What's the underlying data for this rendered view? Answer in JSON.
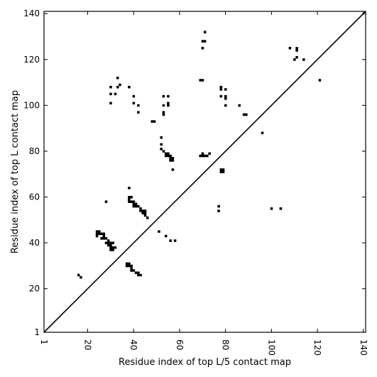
{
  "chart_data": {
    "type": "scatter",
    "title": "",
    "xlabel": "Residue index of top L/5 contact map",
    "ylabel": "Residue index of top L contact map",
    "xlim": [
      1,
      141
    ],
    "ylim": [
      1,
      141
    ],
    "xticks": [
      1,
      20,
      40,
      60,
      80,
      100,
      120,
      140
    ],
    "yticks": [
      1,
      20,
      40,
      60,
      80,
      100,
      120,
      140
    ],
    "x_tick_labels": [
      "1",
      "20",
      "40",
      "60",
      "80",
      "100",
      "120",
      "140"
    ],
    "y_tick_labels": [
      "1",
      "20",
      "40",
      "60",
      "80",
      "100",
      "120",
      "140"
    ],
    "x_tick_rotation": "vertical",
    "grid": false,
    "legend": "none",
    "diagonal": true,
    "marker": "square",
    "marker_color": "#000000",
    "series": [
      {
        "points": [
          [
            71,
            132
          ],
          [
            70,
            128
          ],
          [
            71,
            128
          ],
          [
            70,
            125
          ],
          [
            69,
            111
          ],
          [
            70,
            111
          ],
          [
            108,
            125
          ],
          [
            111,
            125
          ],
          [
            111,
            124
          ],
          [
            110,
            120
          ],
          [
            111,
            121
          ],
          [
            114,
            120
          ],
          [
            121,
            111
          ],
          [
            33,
            112
          ],
          [
            30,
            108
          ],
          [
            33,
            108
          ],
          [
            34,
            109
          ],
          [
            38,
            108
          ],
          [
            30,
            105
          ],
          [
            32,
            105
          ],
          [
            30,
            101
          ],
          [
            40,
            104
          ],
          [
            40,
            101
          ],
          [
            42,
            100
          ],
          [
            42,
            97
          ],
          [
            53,
            104
          ],
          [
            55,
            104
          ],
          [
            53,
            100
          ],
          [
            55,
            101
          ],
          [
            55,
            100
          ],
          [
            53,
            97
          ],
          [
            53,
            96
          ],
          [
            78,
            108
          ],
          [
            78,
            107
          ],
          [
            80,
            107
          ],
          [
            78,
            104
          ],
          [
            80,
            104
          ],
          [
            80,
            103
          ],
          [
            80,
            100
          ],
          [
            86,
            100
          ],
          [
            88,
            96
          ],
          [
            89,
            96
          ],
          [
            96,
            88
          ],
          [
            48,
            93
          ],
          [
            49,
            93
          ],
          [
            52,
            86
          ],
          [
            52,
            83
          ],
          [
            52,
            81
          ],
          [
            53,
            80
          ],
          [
            54,
            79
          ],
          [
            55,
            79
          ],
          [
            54,
            78
          ],
          [
            55,
            78
          ],
          [
            56,
            78
          ],
          [
            56,
            77
          ],
          [
            57,
            77
          ],
          [
            56,
            76
          ],
          [
            57,
            76
          ],
          [
            57,
            72
          ],
          [
            69,
            78
          ],
          [
            70,
            79
          ],
          [
            70,
            78
          ],
          [
            71,
            78
          ],
          [
            72,
            78
          ],
          [
            73,
            79
          ],
          [
            78,
            72
          ],
          [
            79,
            72
          ],
          [
            78,
            71
          ],
          [
            79,
            71
          ],
          [
            38,
            64
          ],
          [
            38,
            60
          ],
          [
            39,
            60
          ],
          [
            38,
            59
          ],
          [
            38,
            58
          ],
          [
            39,
            58
          ],
          [
            40,
            58
          ],
          [
            40,
            57
          ],
          [
            41,
            57
          ],
          [
            40,
            56
          ],
          [
            41,
            56
          ],
          [
            42,
            56
          ],
          [
            43,
            55
          ],
          [
            43,
            54
          ],
          [
            44,
            54
          ],
          [
            45,
            54
          ],
          [
            44,
            53
          ],
          [
            45,
            53
          ],
          [
            45,
            52
          ],
          [
            46,
            51
          ],
          [
            28,
            58
          ],
          [
            77,
            56
          ],
          [
            77,
            54
          ],
          [
            100,
            55
          ],
          [
            104,
            55
          ],
          [
            24,
            45
          ],
          [
            25,
            45
          ],
          [
            24,
            44
          ],
          [
            25,
            44
          ],
          [
            26,
            44
          ],
          [
            27,
            44
          ],
          [
            24,
            43
          ],
          [
            27,
            43
          ],
          [
            26,
            42
          ],
          [
            27,
            42
          ],
          [
            28,
            42
          ],
          [
            29,
            41
          ],
          [
            28,
            40
          ],
          [
            29,
            40
          ],
          [
            30,
            40
          ],
          [
            31,
            40
          ],
          [
            29,
            39
          ],
          [
            30,
            39
          ],
          [
            30,
            38
          ],
          [
            31,
            38
          ],
          [
            32,
            38
          ],
          [
            30,
            37
          ],
          [
            31,
            37
          ],
          [
            51,
            45
          ],
          [
            54,
            43
          ],
          [
            56,
            41
          ],
          [
            58,
            41
          ],
          [
            37,
            31
          ],
          [
            38,
            31
          ],
          [
            37,
            30
          ],
          [
            38,
            30
          ],
          [
            39,
            30
          ],
          [
            39,
            29
          ],
          [
            39,
            28
          ],
          [
            40,
            28
          ],
          [
            41,
            27
          ],
          [
            42,
            27
          ],
          [
            42,
            26
          ],
          [
            43,
            26
          ],
          [
            16,
            26
          ],
          [
            17,
            25
          ]
        ]
      }
    ]
  }
}
